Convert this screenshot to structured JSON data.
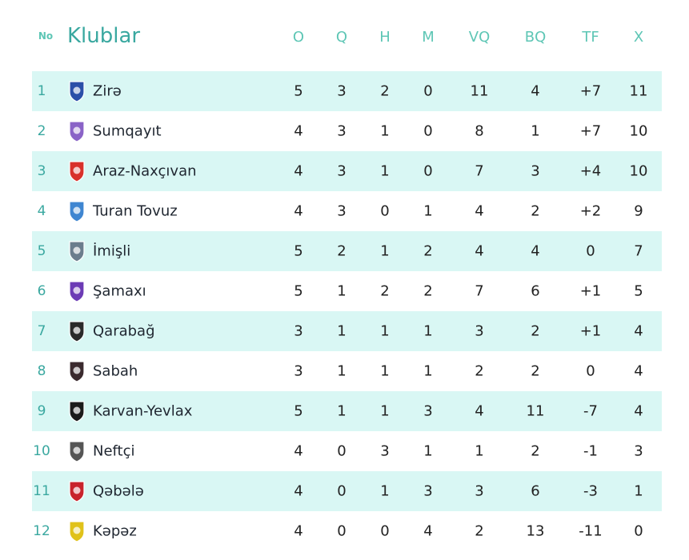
{
  "header": {
    "no": "No",
    "club": "Klublar",
    "cols": [
      "O",
      "Q",
      "H",
      "M",
      "VQ",
      "BQ",
      "TF",
      "X"
    ]
  },
  "rows": [
    {
      "pos": "1",
      "name": "Zirə",
      "logo_color": "#2b4fa8",
      "vals": [
        "5",
        "3",
        "2",
        "0",
        "11",
        "4",
        "+7",
        "11"
      ]
    },
    {
      "pos": "2",
      "name": "Sumqayıt",
      "logo_color": "#8a63c7",
      "vals": [
        "4",
        "3",
        "1",
        "0",
        "8",
        "1",
        "+7",
        "10"
      ]
    },
    {
      "pos": "3",
      "name": "Araz-Naxçıvan",
      "logo_color": "#d8312b",
      "vals": [
        "4",
        "3",
        "1",
        "0",
        "7",
        "3",
        "+4",
        "10"
      ]
    },
    {
      "pos": "4",
      "name": "Turan Tovuz",
      "logo_color": "#3f86d1",
      "vals": [
        "4",
        "3",
        "0",
        "1",
        "4",
        "2",
        "+2",
        "9"
      ]
    },
    {
      "pos": "5",
      "name": "İmişli",
      "logo_color": "#6b7d8d",
      "vals": [
        "5",
        "2",
        "1",
        "2",
        "4",
        "4",
        "0",
        "7"
      ]
    },
    {
      "pos": "6",
      "name": "Şamaxı",
      "logo_color": "#6c3bb5",
      "vals": [
        "5",
        "1",
        "2",
        "2",
        "7",
        "6",
        "+1",
        "5"
      ]
    },
    {
      "pos": "7",
      "name": "Qarabağ",
      "logo_color": "#2a2a2a",
      "vals": [
        "3",
        "1",
        "1",
        "1",
        "3",
        "2",
        "+1",
        "4"
      ]
    },
    {
      "pos": "8",
      "name": "Sabah",
      "logo_color": "#3a2a2e",
      "vals": [
        "3",
        "1",
        "1",
        "1",
        "2",
        "2",
        "0",
        "4"
      ]
    },
    {
      "pos": "9",
      "name": "Karvan-Yevlax",
      "logo_color": "#1b1b1b",
      "vals": [
        "5",
        "1",
        "1",
        "3",
        "4",
        "11",
        "-7",
        "4"
      ]
    },
    {
      "pos": "10",
      "name": "Neftçi",
      "logo_color": "#555555",
      "vals": [
        "4",
        "0",
        "3",
        "1",
        "1",
        "2",
        "-1",
        "3"
      ]
    },
    {
      "pos": "11",
      "name": "Qəbələ",
      "logo_color": "#c8232c",
      "vals": [
        "4",
        "0",
        "1",
        "3",
        "3",
        "6",
        "-3",
        "1"
      ]
    },
    {
      "pos": "12",
      "name": "Kəpəz",
      "logo_color": "#e0c21a",
      "vals": [
        "4",
        "0",
        "0",
        "4",
        "2",
        "13",
        "-11",
        "0"
      ]
    }
  ]
}
